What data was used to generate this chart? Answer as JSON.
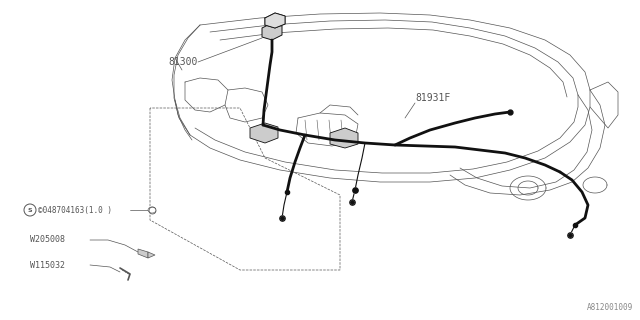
{
  "bg_color": "#ffffff",
  "line_color": "#555555",
  "thick_color": "#111111",
  "title_ref": "A812001009",
  "labels": {
    "part1": "81300",
    "part2": "81931F",
    "bolt": "©048704163(1.0 )",
    "w1": "W205008",
    "w2": "W115032"
  },
  "figsize": [
    6.4,
    3.2
  ],
  "dpi": 100
}
